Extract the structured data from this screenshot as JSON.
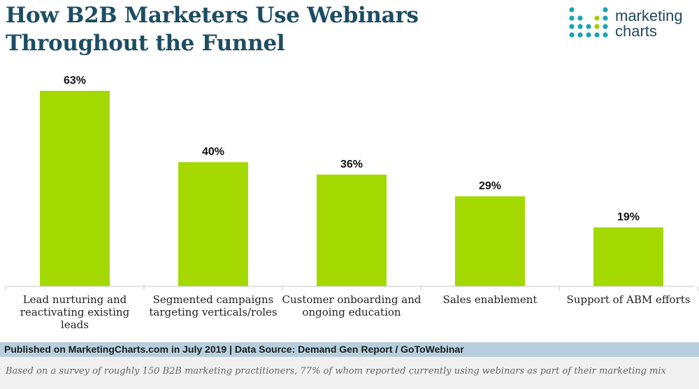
{
  "header": {
    "title_line1": "How B2B Marketers Use Webinars",
    "title_line2": "Throughout the Funnel",
    "logo_line1": "marketing",
    "logo_line2": "charts"
  },
  "chart_data": {
    "type": "bar",
    "title": "How B2B Marketers Use Webinars Throughout the Funnel",
    "categories": [
      [
        "Lead nurturing and",
        "reactivating existing leads"
      ],
      [
        "Segmented campaigns",
        "targeting verticals/roles"
      ],
      [
        "Customer onboarding and",
        "ongoing education"
      ],
      [
        "Sales enablement"
      ],
      [
        "Support of ABM efforts"
      ]
    ],
    "values": [
      63,
      40,
      36,
      29,
      19
    ],
    "value_labels": [
      "63%",
      "40%",
      "36%",
      "29%",
      "19%"
    ],
    "unit": "%",
    "xlabel": "",
    "ylabel": "",
    "ylim": [
      0,
      63
    ],
    "grid": false,
    "bar_color": "#a3d900"
  },
  "footer": {
    "source": "Published on MarketingCharts.com in July 2019 | Data Source: Demand Gen Report / GoToWebinar",
    "note": "Based on a survey of roughly 150 B2B marketing practitioners, 77% of whom reported currently using webinars as part of their marketing mix"
  },
  "colors": {
    "title": "#1d4d63",
    "bar": "#a3d900",
    "source_bg": "#b7cfdd",
    "note_bg": "#f0f0f0",
    "logo_teal": "#1aa3b8",
    "logo_green": "#9fd100"
  }
}
